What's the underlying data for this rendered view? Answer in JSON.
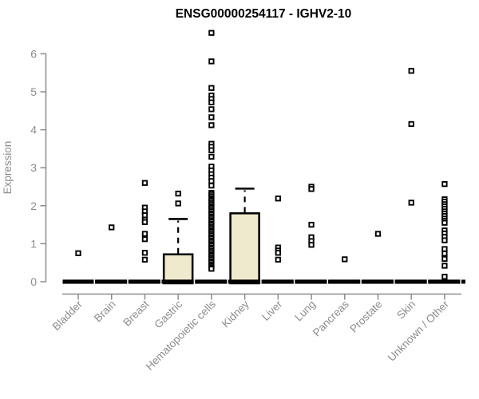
{
  "chart_data": {
    "type": "boxplot",
    "title": "ENSG00000254117 - IGHV2-10",
    "ylabel": "Expression",
    "ylim": [
      0,
      6
    ],
    "yticks": [
      0,
      1,
      2,
      3,
      4,
      5,
      6
    ],
    "legend": "none",
    "grid": false,
    "colors": {
      "box_fill": "#EFEACD",
      "box_stroke": "#000000",
      "axis": "#8c8c8c",
      "tick_label": "#8c8c8c",
      "point": "#000000",
      "title": "#000000"
    },
    "categories": [
      {
        "label": "Bladder",
        "median": 0,
        "box": null,
        "points": [
          0.75
        ]
      },
      {
        "label": "Brain",
        "median": 0,
        "box": null,
        "points": [
          1.43
        ]
      },
      {
        "label": "Breast",
        "median": 0,
        "box": null,
        "points": [
          2.6,
          1.95,
          1.85,
          1.75,
          1.63,
          1.57,
          1.26,
          1.12,
          0.76,
          0.58
        ]
      },
      {
        "label": "Gastric",
        "median": 0,
        "box": {
          "q1": 0,
          "median": 0,
          "q3": 0.72,
          "upper_whisker": 1.65,
          "lower_whisker": 0
        },
        "points": [
          2.32,
          2.06
        ]
      },
      {
        "label": "Hematopoietic cells",
        "median": 0,
        "box": null,
        "points": [
          6.55,
          5.8,
          5.1,
          4.9,
          4.81,
          4.72,
          4.54,
          4.33,
          4.12,
          3.63,
          3.55,
          3.46,
          3.29,
          3.03,
          2.93,
          2.83,
          2.74,
          2.65,
          2.53,
          2.34,
          2.3,
          2.25,
          2.2,
          2.16,
          2.12,
          2.07,
          2.03,
          1.98,
          1.94,
          1.89,
          1.85,
          1.8,
          1.76,
          1.71,
          1.67,
          1.62,
          1.58,
          1.53,
          1.49,
          1.44,
          1.4,
          1.35,
          1.31,
          1.26,
          1.22,
          1.17,
          1.13,
          1.08,
          1.04,
          0.99,
          0.95,
          0.9,
          0.86,
          0.81,
          0.77,
          0.72,
          0.68,
          0.63,
          0.59,
          0.54,
          0.5,
          0.45,
          0.41,
          0.37,
          0.34
        ]
      },
      {
        "label": "Kidney",
        "median": 0,
        "box": {
          "q1": 0,
          "median": 0,
          "q3": 1.8,
          "upper_whisker": 2.45,
          "lower_whisker": 0
        },
        "points": []
      },
      {
        "label": "Liver",
        "median": 0,
        "box": null,
        "points": [
          2.19,
          0.9,
          0.82,
          0.76,
          0.58
        ]
      },
      {
        "label": "Lung",
        "median": 0,
        "box": null,
        "points": [
          2.5,
          2.44,
          1.5,
          1.17,
          1.07,
          0.97
        ]
      },
      {
        "label": "Pancreas",
        "median": 0,
        "box": null,
        "points": [
          0.59
        ]
      },
      {
        "label": "Prostate",
        "median": 0,
        "box": null,
        "points": [
          1.26
        ]
      },
      {
        "label": "Skin",
        "median": 0,
        "box": null,
        "points": [
          5.55,
          4.15,
          2.08
        ]
      },
      {
        "label": "Unknown / Other",
        "median": 0,
        "box": null,
        "points": [
          2.57,
          2.17,
          2.11,
          2.04,
          1.98,
          1.92,
          1.85,
          1.79,
          1.73,
          1.66,
          1.6,
          1.55,
          1.35,
          1.27,
          1.18,
          1.09,
          0.86,
          0.74,
          0.6,
          0.42,
          0.13
        ]
      }
    ]
  }
}
